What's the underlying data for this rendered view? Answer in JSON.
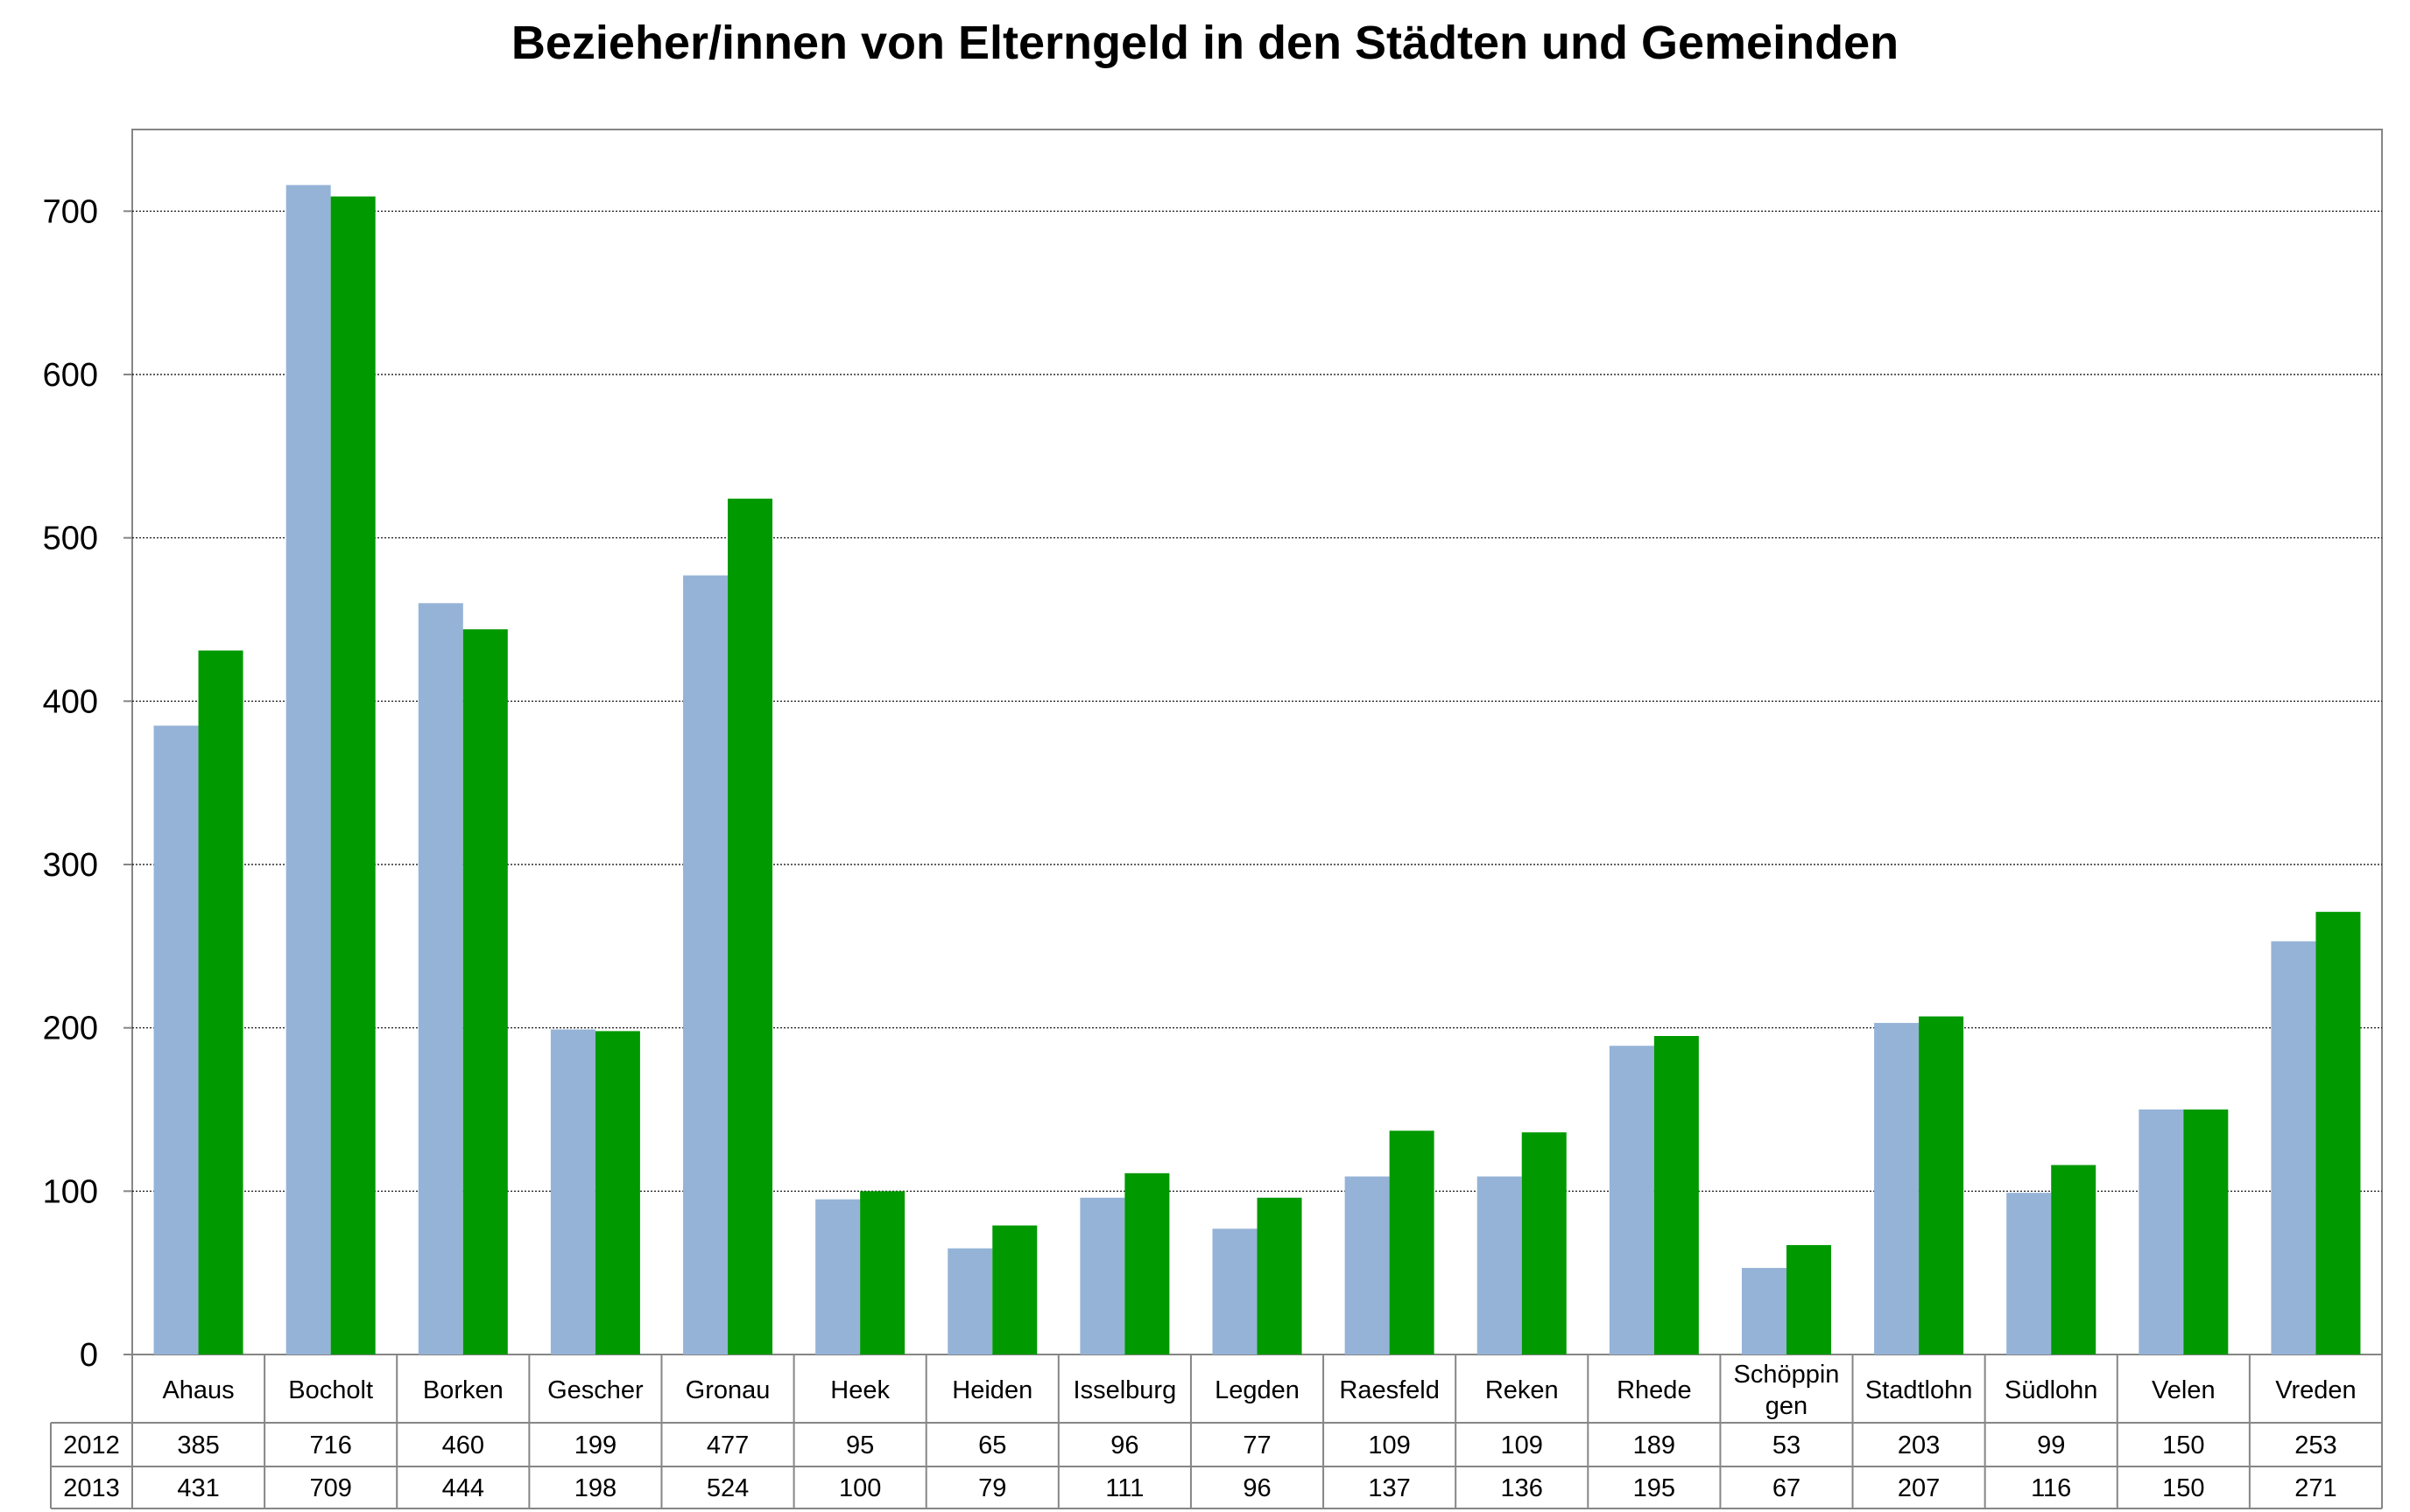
{
  "chart_data": {
    "type": "bar",
    "title": "Bezieher/innen von Elterngeld in den Städten und Gemeinden",
    "xlabel": "",
    "ylabel": "",
    "ylim": [
      0,
      750
    ],
    "yticks": [
      0,
      100,
      200,
      300,
      400,
      500,
      600,
      700
    ],
    "grid": true,
    "legend": "data-table",
    "categories": [
      "Ahaus",
      "Bocholt",
      "Borken",
      "Gescher",
      "Gronau",
      "Heek",
      "Heiden",
      "Isselburg",
      "Legden",
      "Raesfeld",
      "Reken",
      "Rhede",
      "Schöppin gen",
      "Stadtlohn",
      "Südlohn",
      "Velen",
      "Vreden"
    ],
    "category_lines": [
      [
        "Ahaus"
      ],
      [
        "Bocholt"
      ],
      [
        "Borken"
      ],
      [
        "Gescher"
      ],
      [
        "Gronau"
      ],
      [
        "Heek"
      ],
      [
        "Heiden"
      ],
      [
        "Isselburg"
      ],
      [
        "Legden"
      ],
      [
        "Raesfeld"
      ],
      [
        "Reken"
      ],
      [
        "Rhede"
      ],
      [
        "Schöppin",
        "gen"
      ],
      [
        "Stadtlohn"
      ],
      [
        "Südlohn"
      ],
      [
        "Velen"
      ],
      [
        "Vreden"
      ]
    ],
    "series": [
      {
        "name": "2012",
        "color": "#95b3d7",
        "values": [
          385,
          716,
          460,
          199,
          477,
          95,
          65,
          96,
          77,
          109,
          109,
          189,
          53,
          203,
          99,
          150,
          253
        ]
      },
      {
        "name": "2013",
        "color": "#009900",
        "values": [
          431,
          709,
          444,
          198,
          524,
          100,
          79,
          111,
          96,
          137,
          136,
          195,
          67,
          207,
          116,
          150,
          271
        ]
      }
    ]
  }
}
